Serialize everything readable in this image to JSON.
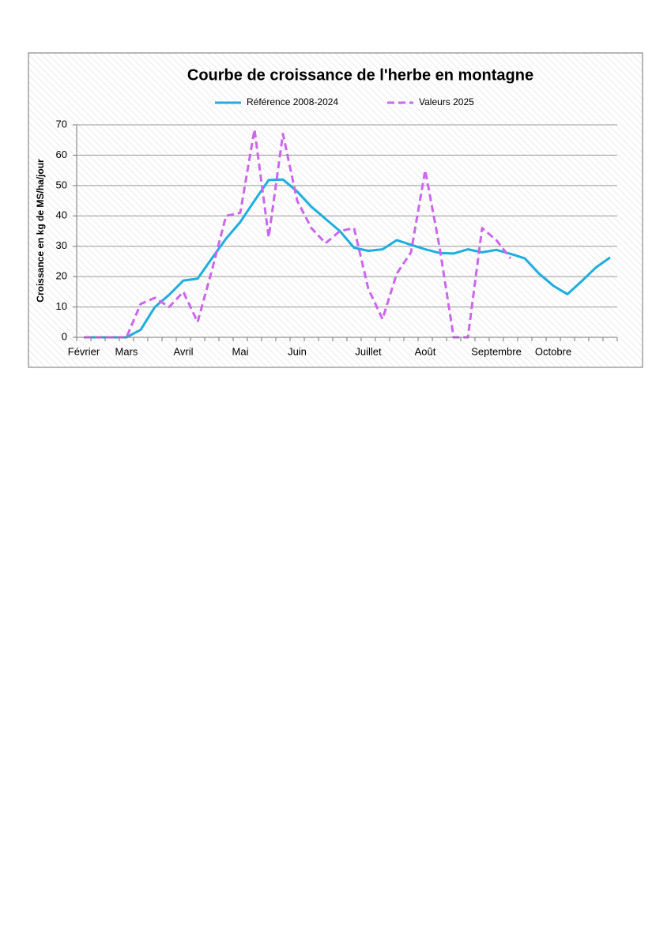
{
  "chart_data": {
    "type": "line",
    "title": "Courbe de croissance de l'herbe en montagne",
    "y_label": "Croissance en kg de MS/ha/jour",
    "categories": [
      "Février",
      null,
      null,
      "Mars",
      null,
      null,
      null,
      "Avril",
      null,
      null,
      null,
      "Mai",
      null,
      null,
      null,
      "Juin",
      null,
      null,
      null,
      null,
      "Juillet",
      null,
      null,
      null,
      "Août",
      null,
      null,
      null,
      null,
      "Septembre",
      null,
      null,
      null,
      "Octobre",
      null,
      null,
      null,
      null
    ],
    "series": [
      {
        "name": "Référence 2008-2024",
        "color": "#1eaee0",
        "dash": false,
        "values": [
          0,
          0,
          0,
          0,
          2.5,
          10,
          14,
          18.7,
          19.3,
          26,
          32.5,
          38,
          45,
          51.8,
          52,
          48,
          43,
          39,
          35,
          29.5,
          28.5,
          29,
          32,
          30.5,
          29,
          27.8,
          27.6,
          29,
          28,
          28.8,
          27.5,
          26,
          21,
          17,
          14.2,
          18.5,
          23,
          26.3
        ]
      },
      {
        "name": "Valeurs 2025",
        "color": "#cc66ee",
        "dash": true,
        "values": [
          0,
          0,
          0,
          0,
          11,
          13,
          10,
          15,
          5,
          22,
          40,
          41,
          68.5,
          33,
          67,
          45,
          36,
          31,
          35,
          36,
          16,
          6,
          21,
          28,
          55,
          30,
          0,
          0,
          36,
          32,
          26,
          null,
          null,
          null,
          null,
          null,
          null,
          null
        ]
      }
    ],
    "ylim": [
      0,
      70
    ],
    "yticks": [
      0,
      10,
      20,
      30,
      40,
      50,
      60,
      70
    ],
    "grid": true,
    "legend": "top"
  }
}
